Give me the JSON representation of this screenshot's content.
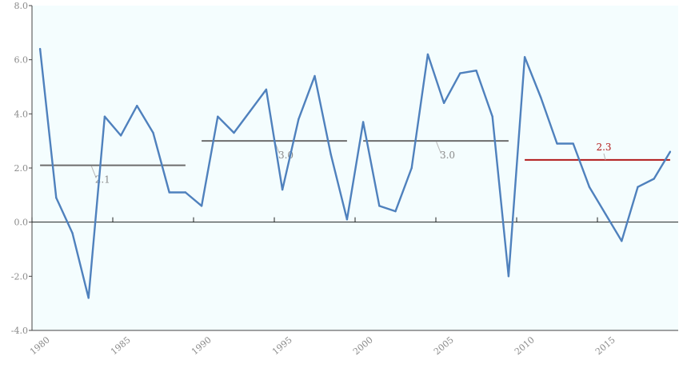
{
  "chart_data": {
    "type": "line",
    "title": "",
    "xlabel": "",
    "ylabel": "",
    "xlim": [
      1980,
      2019
    ],
    "ylim": [
      -4.0,
      8.0
    ],
    "yticks": [
      "8.0",
      "6.0",
      "4.0",
      "2.0",
      "0.0",
      "-2.0",
      "-4.0"
    ],
    "ytick_values": [
      8,
      6,
      4,
      2,
      0,
      -2,
      -4
    ],
    "xticks": [
      "1980",
      "1985",
      "1990",
      "1995",
      "2000",
      "2005",
      "2010",
      "2015"
    ],
    "xtick_values": [
      1980,
      1985,
      1990,
      1995,
      2000,
      2005,
      2010,
      2015
    ],
    "grid": false,
    "legend": "none",
    "background_color": "#f4fdfe",
    "series": [
      {
        "color": "#4f81bd",
        "x": [
          1980,
          1981,
          1982,
          1983,
          1984,
          1985,
          1986,
          1987,
          1988,
          1989,
          1990,
          1991,
          1992,
          1993,
          1994,
          1995,
          1996,
          1997,
          1998,
          1999,
          2000,
          2001,
          2002,
          2003,
          2004,
          2005,
          2006,
          2007,
          2008,
          2009,
          2010,
          2011,
          2012,
          2013,
          2014,
          2015,
          2016,
          2017,
          2018,
          2019
        ],
        "values": [
          6.4,
          0.9,
          -0.4,
          -2.8,
          3.9,
          3.2,
          4.3,
          3.3,
          1.1,
          1.1,
          0.6,
          3.9,
          3.3,
          4.1,
          4.9,
          1.2,
          3.8,
          5.4,
          2.5,
          0.1,
          3.7,
          0.6,
          0.4,
          2.0,
          6.2,
          4.4,
          5.5,
          5.6,
          3.9,
          -2.0,
          6.1,
          4.6,
          2.9,
          2.9,
          1.3,
          0.3,
          -0.7,
          1.3,
          1.6,
          2.6
        ]
      }
    ],
    "averages": [
      {
        "label": "2.1",
        "value": 2.1,
        "x_start": 1980,
        "x_end": 1989,
        "color": "#6d6d6d",
        "label_color": "#8a8a8a"
      },
      {
        "label": "3.0",
        "value": 3.0,
        "x_start": 1990,
        "x_end": 1999,
        "color": "#6d6d6d",
        "label_color": "#8a8a8a"
      },
      {
        "label": "3.0",
        "value": 3.0,
        "x_start": 2000,
        "x_end": 2009,
        "color": "#6d6d6d",
        "label_color": "#8a8a8a"
      },
      {
        "label": "2.3",
        "value": 2.3,
        "x_start": 2010,
        "x_end": 2019,
        "color": "#b21c1c",
        "label_color": "#b21c1c"
      }
    ]
  }
}
